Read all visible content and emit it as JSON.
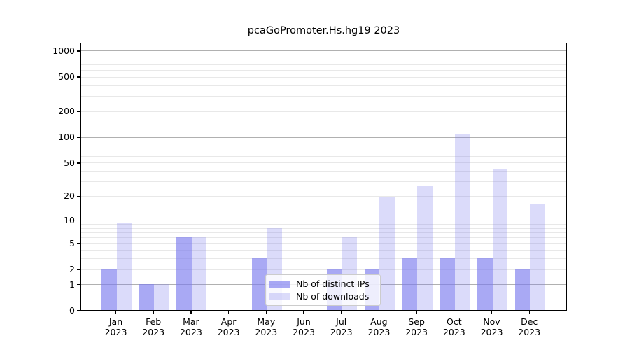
{
  "chart_data": {
    "type": "bar",
    "title": "pcaGoPromoter.Hs.hg19 2023",
    "scale": "log10(1+x)",
    "categories": [
      "Jan",
      "Feb",
      "Mar",
      "Apr",
      "May",
      "Jun",
      "Jul",
      "Aug",
      "Sep",
      "Oct",
      "Nov",
      "Dec"
    ],
    "year": "2023",
    "series": [
      {
        "name": "Nb of distinct IPs",
        "color": "#7b7bee",
        "alpha": 0.65,
        "values": [
          2,
          1,
          6,
          0,
          3,
          0,
          2,
          2,
          3,
          3,
          3,
          2
        ]
      },
      {
        "name": "Nb of downloads",
        "color": "#7b7bee",
        "alpha": 0.27,
        "values": [
          9,
          1,
          6,
          0,
          8,
          0,
          6,
          19,
          26,
          106,
          41,
          16
        ]
      }
    ],
    "y_tick_labels": [
      0,
      1,
      2,
      5,
      10,
      20,
      50,
      100,
      200,
      500,
      1000
    ],
    "y_major_gridlines": [
      1,
      10,
      100,
      1000
    ],
    "y_minor_gridlines": [
      2,
      3,
      4,
      5,
      6,
      7,
      8,
      9,
      20,
      30,
      40,
      50,
      60,
      70,
      80,
      90,
      200,
      300,
      400,
      500,
      600,
      700,
      800,
      900
    ],
    "ylim": [
      0,
      1250
    ],
    "grid": true,
    "legend_position": "lower center inside plot",
    "colors": {
      "major_grid": "#b0b0b0",
      "minor_grid": "#e8e8e8",
      "axis": "#000000",
      "background": "#ffffff"
    }
  }
}
